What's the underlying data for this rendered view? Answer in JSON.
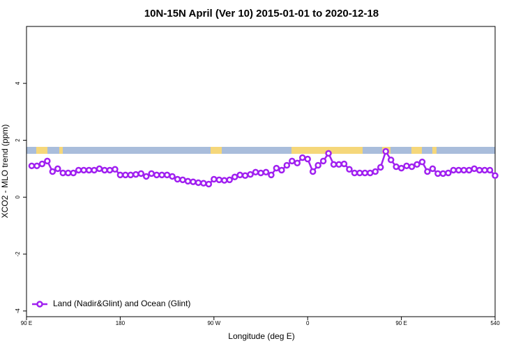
{
  "chart_data": {
    "type": "line",
    "title": "10N-15N April (Ver 10)   2015-01-01 to 2020-12-18",
    "xlabel": "Longitude (deg E)",
    "ylabel": "XCO2 - MLO trend (ppm)",
    "x": [
      95,
      100,
      105,
      110,
      115,
      120,
      125,
      130,
      135,
      140,
      145,
      150,
      155,
      160,
      165,
      170,
      175,
      180,
      185,
      190,
      195,
      200,
      205,
      210,
      215,
      220,
      225,
      230,
      235,
      240,
      245,
      250,
      255,
      260,
      265,
      270,
      275,
      280,
      285,
      290,
      295,
      300,
      305,
      310,
      315,
      320,
      325,
      330,
      335,
      340,
      345,
      350,
      355,
      360,
      365,
      370,
      375,
      380,
      385,
      390,
      395,
      400,
      405,
      410,
      415,
      420,
      425,
      430,
      435,
      440,
      445,
      450,
      455,
      460,
      465,
      470,
      475,
      480,
      485,
      490,
      495,
      500,
      505,
      510,
      515,
      520,
      525,
      530,
      535,
      540
    ],
    "series": [
      {
        "name": "Land (Nadir&Glint) and Ocean (Glint)",
        "color": "#a020f0",
        "values": [
          1.1,
          1.1,
          1.17,
          1.27,
          0.9,
          1.0,
          0.85,
          0.85,
          0.85,
          0.95,
          0.95,
          0.95,
          0.95,
          1.0,
          0.95,
          0.95,
          0.98,
          0.78,
          0.78,
          0.78,
          0.8,
          0.83,
          0.73,
          0.83,
          0.78,
          0.78,
          0.78,
          0.73,
          0.63,
          0.61,
          0.56,
          0.54,
          0.51,
          0.49,
          0.46,
          0.63,
          0.61,
          0.59,
          0.61,
          0.71,
          0.78,
          0.76,
          0.8,
          0.88,
          0.85,
          0.88,
          0.78,
          1.02,
          0.95,
          1.12,
          1.27,
          1.2,
          1.39,
          1.34,
          0.9,
          1.12,
          1.27,
          1.54,
          1.15,
          1.15,
          1.17,
          0.98,
          0.85,
          0.85,
          0.85,
          0.85,
          0.9,
          1.05,
          1.61,
          1.31,
          1.07,
          1.02,
          1.1,
          1.07,
          1.15,
          1.24,
          0.9,
          1.0,
          0.83,
          0.83,
          0.85,
          0.95,
          0.95,
          0.95,
          0.95,
          1.0,
          0.95,
          0.95,
          0.95,
          0.76
        ]
      }
    ],
    "xlim": [
      90,
      540
    ],
    "xticks": [
      {
        "value": 90,
        "label": "90 E"
      },
      180,
      {
        "value": 270,
        "label": "90 W"
      },
      {
        "value": 360,
        "label": "0"
      },
      {
        "value": 450,
        "label": "90 E"
      },
      540
    ],
    "ylim": [
      -4.2,
      6
    ],
    "yticks": [
      -4,
      -2,
      0,
      2,
      4
    ],
    "legend": "bottom-left"
  }
}
